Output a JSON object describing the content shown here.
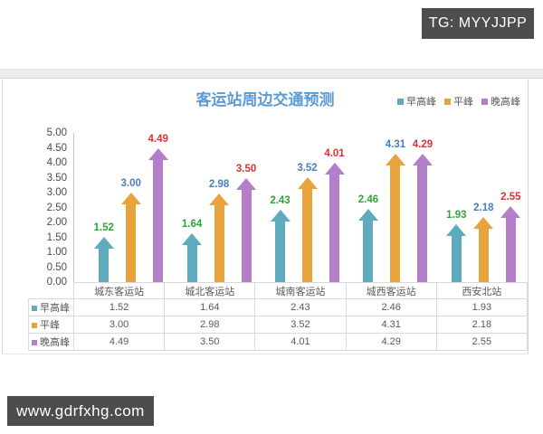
{
  "watermarks": {
    "top": "TG: MYYJJPP",
    "bottom": "www.gdrfxhg.com"
  },
  "chart": {
    "title": "客运站周边交通预测",
    "title_color": "#5B9BD5"
  },
  "chart_data": {
    "type": "bar",
    "bar_style": "block-arrow",
    "title": "客运站周边交通预测",
    "xlabel": "",
    "ylabel": "",
    "categories": [
      "城东客运站",
      "城北客运站",
      "城南客运站",
      "城西客运站",
      "西安北站"
    ],
    "series": [
      {
        "name": "早高峰",
        "color": "#5FAABF",
        "label_color": "#2FA435",
        "values": [
          1.52,
          1.64,
          2.43,
          2.46,
          1.93
        ]
      },
      {
        "name": "平峰",
        "color": "#E8A33C",
        "label_color": "#4A7EBB",
        "values": [
          3.0,
          2.98,
          3.52,
          4.31,
          2.18
        ]
      },
      {
        "name": "晚高峰",
        "color": "#B57EC8",
        "label_color": "#D93434",
        "values": [
          4.49,
          3.5,
          4.01,
          4.29,
          2.55
        ]
      }
    ],
    "ylim": [
      0,
      5
    ],
    "ytick_step": 0.5,
    "ytick_labels": [
      "5.00",
      "4.50",
      "4.00",
      "3.50",
      "3.00",
      "2.50",
      "2.00",
      "1.50",
      "1.00",
      "0.50",
      "0.00"
    ],
    "grid": false,
    "legend_position": "top-right",
    "value_label_decimals": 2,
    "data_table_shown": true
  }
}
